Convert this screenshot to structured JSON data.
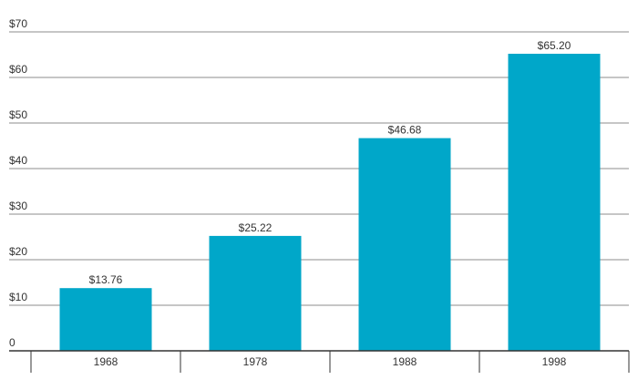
{
  "chart_data": {
    "type": "bar",
    "categories": [
      "1968",
      "1978",
      "1988",
      "1998"
    ],
    "values": [
      13.76,
      25.22,
      46.68,
      65.2
    ],
    "value_labels": [
      "$13.76",
      "$25.22",
      "$46.68",
      "$65.20"
    ],
    "y_ticks": [
      0,
      10,
      20,
      30,
      40,
      50,
      60,
      70
    ],
    "y_tick_labels": [
      "0",
      "$10",
      "$20",
      "$30",
      "$40",
      "$50",
      "$60",
      "$70"
    ],
    "ylim": [
      0,
      70
    ],
    "grid": true,
    "title": "",
    "xlabel": "",
    "ylabel": ""
  },
  "colors": {
    "bar": "#00A7C9",
    "grid": "#8c8c8c",
    "axis": "#333333"
  }
}
